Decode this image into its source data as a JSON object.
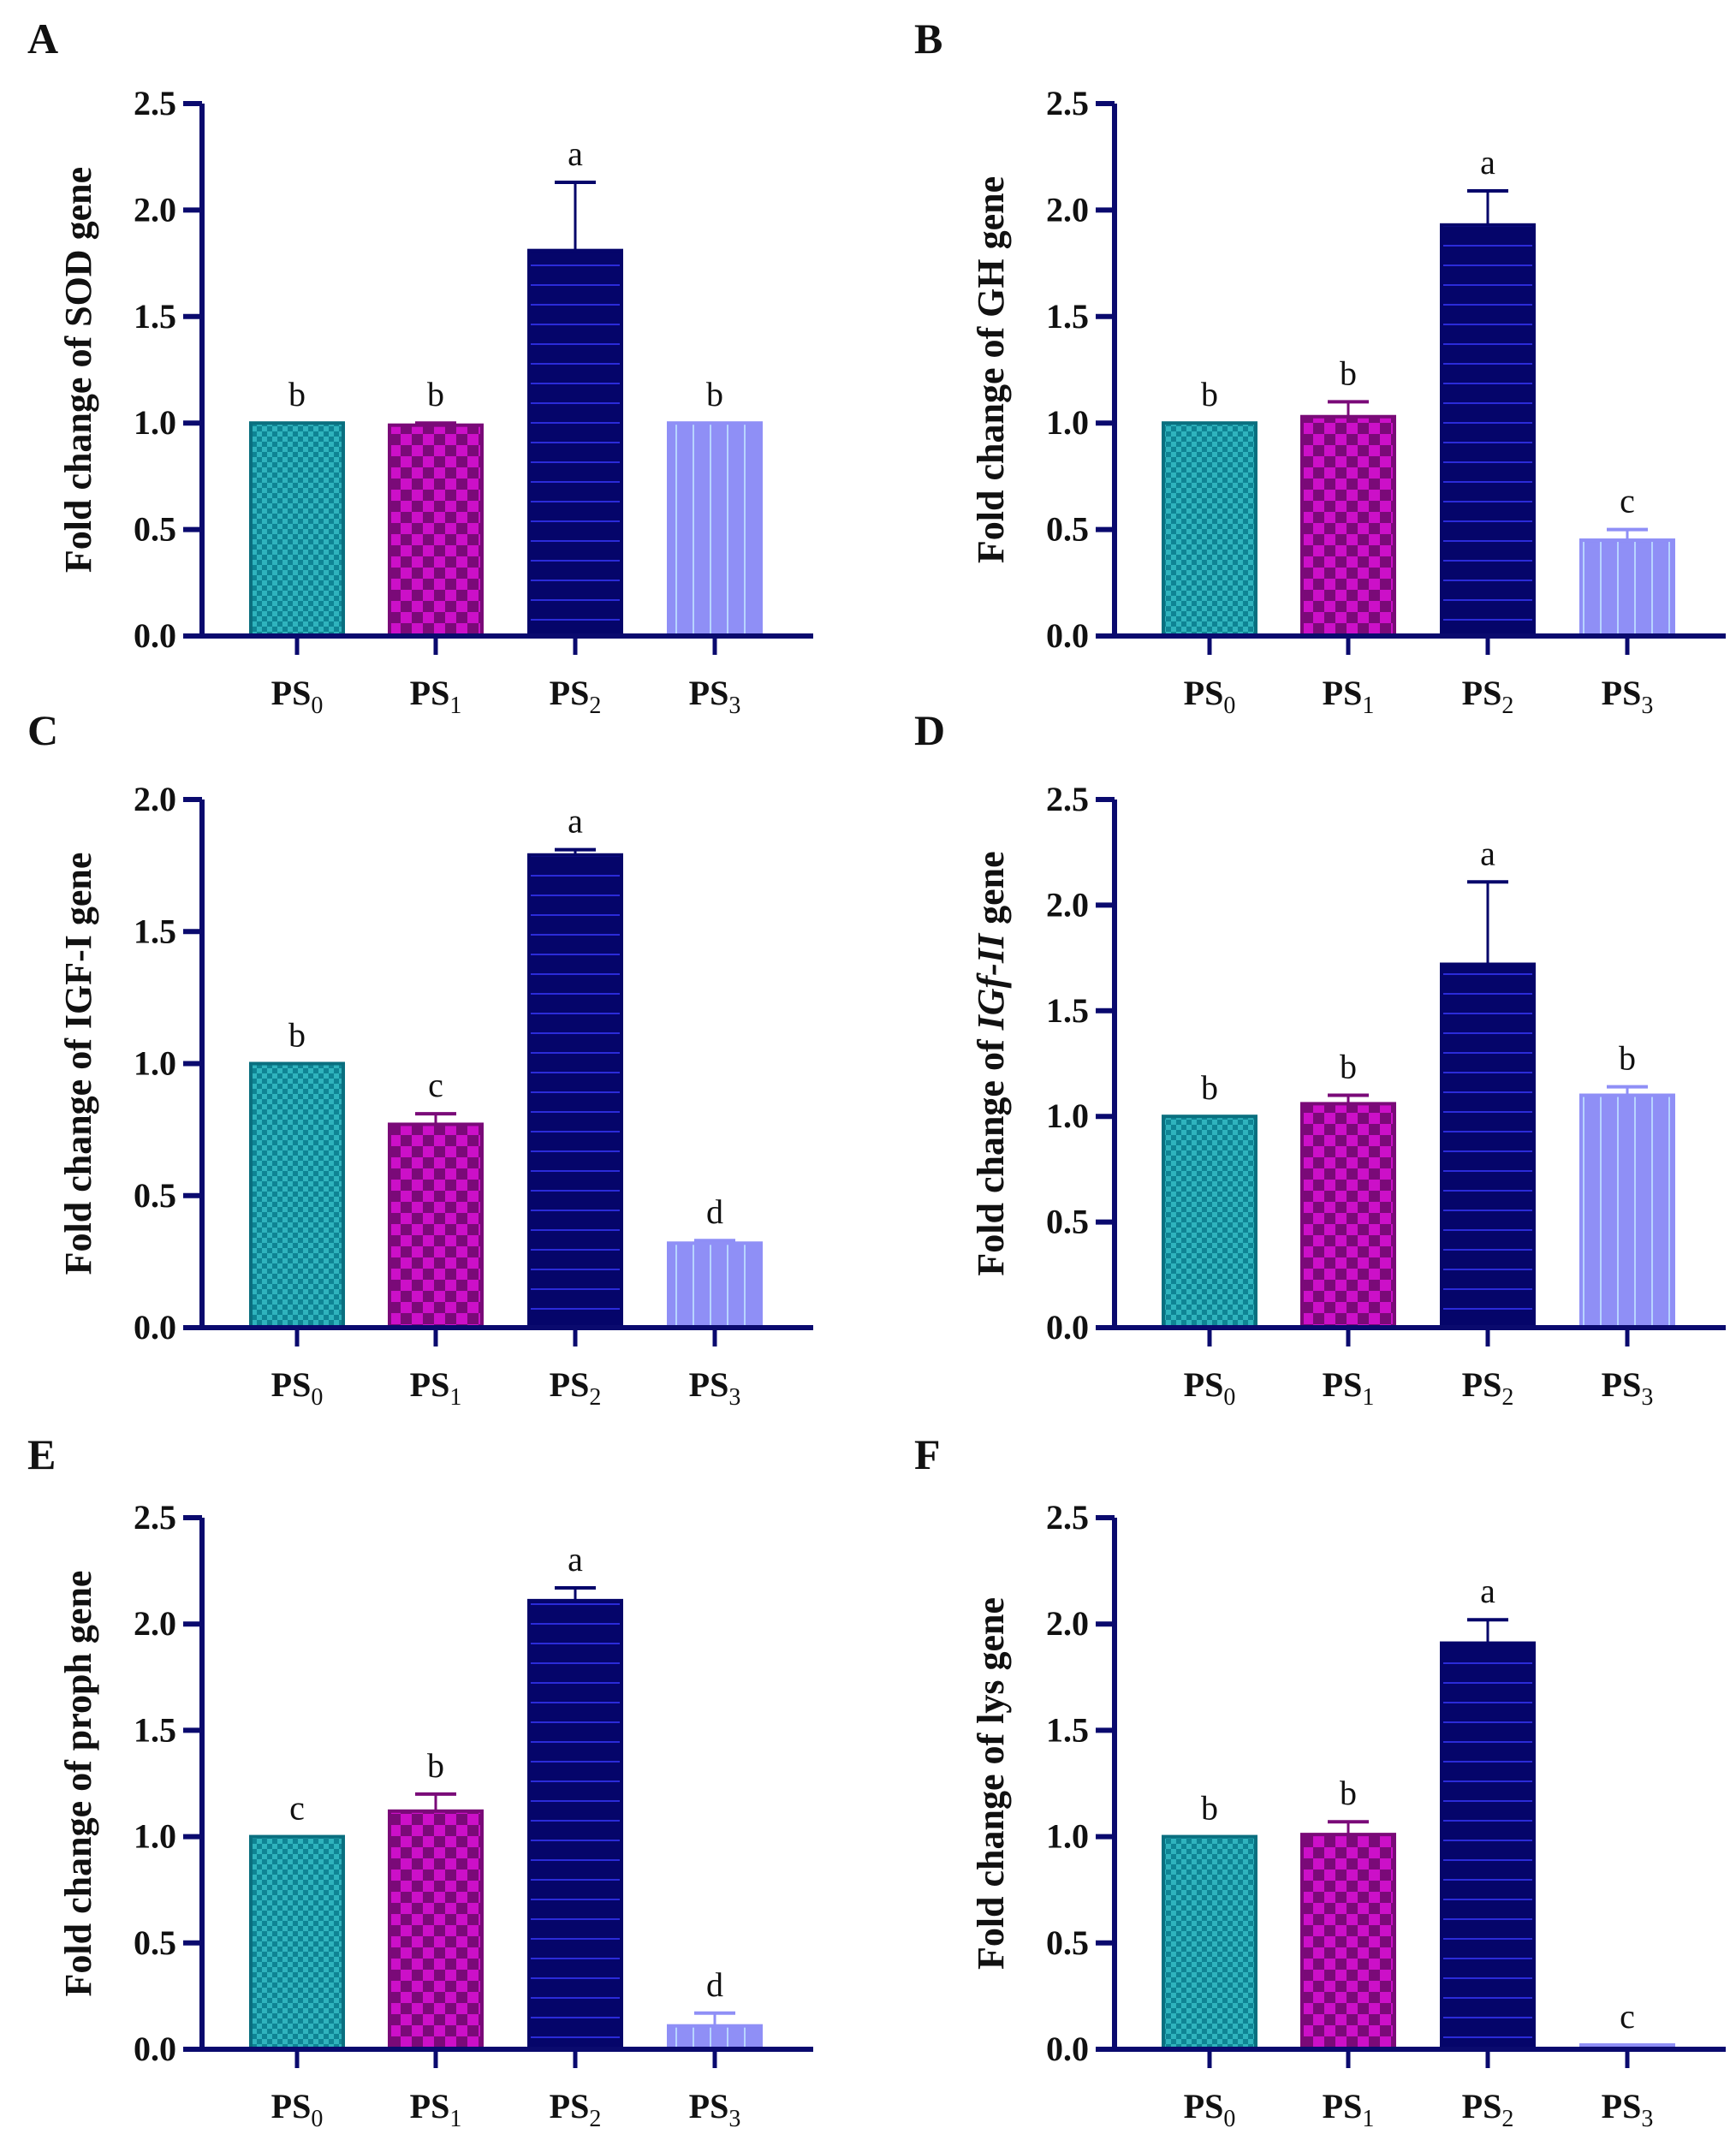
{
  "colors": {
    "axis": "#0a0a6e",
    "PS0": {
      "fill": "#0f8494",
      "alt": "#2fb3bd",
      "stroke": "#0a6f7f"
    },
    "PS1": {
      "fill": "#cc10c8",
      "alt": "#7a0a78",
      "stroke": "#7a0a78"
    },
    "PS2": {
      "fill": "#05056a",
      "alt": "#2b2bd8",
      "stroke": "#05056a"
    },
    "PS3": {
      "fill": "#8f8ff6",
      "alt": "#b8d4ff",
      "stroke": "#8f8ff6"
    }
  },
  "chart_data": [
    {
      "panel": "A",
      "type": "bar",
      "ylabel": "Fold change of SOD gene",
      "ylabel_italic": "",
      "categories": [
        {
          "base": "PS",
          "sub": "0"
        },
        {
          "base": "PS",
          "sub": "1"
        },
        {
          "base": "PS",
          "sub": "2"
        },
        {
          "base": "PS",
          "sub": "3"
        }
      ],
      "values": [
        1.0,
        0.99,
        1.81,
        1.0
      ],
      "errors": [
        0,
        0.01,
        0.32,
        0
      ],
      "letters": [
        "b",
        "b",
        "a",
        "b"
      ],
      "ylim": [
        0,
        2.5
      ],
      "yticks": [
        "0.0",
        "0.5",
        "1.0",
        "1.5",
        "2.0",
        "2.5"
      ],
      "tick_step": 0.5
    },
    {
      "panel": "B",
      "type": "bar",
      "ylabel": "Fold change of GH gene",
      "ylabel_italic": "",
      "categories": [
        {
          "base": "PS",
          "sub": "0"
        },
        {
          "base": "PS",
          "sub": "1"
        },
        {
          "base": "PS",
          "sub": "2"
        },
        {
          "base": "PS",
          "sub": "3"
        }
      ],
      "values": [
        1.0,
        1.03,
        1.93,
        0.45
      ],
      "errors": [
        0,
        0.07,
        0.16,
        0.05
      ],
      "letters": [
        "b",
        "b",
        "a",
        "c"
      ],
      "ylim": [
        0,
        2.5
      ],
      "yticks": [
        "0.0",
        "0.5",
        "1.0",
        "1.5",
        "2.0",
        "2.5"
      ],
      "tick_step": 0.5
    },
    {
      "panel": "C",
      "type": "bar",
      "ylabel": "Fold change of IGF-I gene",
      "ylabel_italic": "",
      "categories": [
        {
          "base": "PS",
          "sub": "0"
        },
        {
          "base": "PS",
          "sub": "1"
        },
        {
          "base": "PS",
          "sub": "2"
        },
        {
          "base": "PS",
          "sub": "3"
        }
      ],
      "values": [
        1.0,
        0.77,
        1.79,
        0.32
      ],
      "errors": [
        0,
        0.04,
        0.02,
        0.01
      ],
      "letters": [
        "b",
        "c",
        "a",
        "d"
      ],
      "ylim": [
        0,
        2.0
      ],
      "yticks": [
        "0.0",
        "0.5",
        "1.0",
        "1.5",
        "2.0"
      ],
      "tick_step": 0.5
    },
    {
      "panel": "D",
      "type": "bar",
      "ylabel": "Fold change of IGf-II gene",
      "ylabel_italic": "IGf-II",
      "categories": [
        {
          "base": "PS",
          "sub": "0"
        },
        {
          "base": "PS",
          "sub": "1"
        },
        {
          "base": "PS",
          "sub": "2"
        },
        {
          "base": "PS",
          "sub": "3"
        }
      ],
      "values": [
        1.0,
        1.06,
        1.72,
        1.1
      ],
      "errors": [
        0,
        0.04,
        0.39,
        0.04
      ],
      "letters": [
        "b",
        "b",
        "a",
        "b"
      ],
      "ylim": [
        0,
        2.5
      ],
      "yticks": [
        "0.0",
        "0.5",
        "1.0",
        "1.5",
        "2.0",
        "2.5"
      ],
      "tick_step": 0.5
    },
    {
      "panel": "E",
      "type": "bar",
      "ylabel": "Fold change of proph gene",
      "ylabel_italic": "",
      "categories": [
        {
          "base": "PS",
          "sub": "0"
        },
        {
          "base": "PS",
          "sub": "1"
        },
        {
          "base": "PS",
          "sub": "2"
        },
        {
          "base": "PS",
          "sub": "3"
        }
      ],
      "values": [
        1.0,
        1.12,
        2.11,
        0.11
      ],
      "errors": [
        0,
        0.08,
        0.06,
        0.06
      ],
      "letters": [
        "c",
        "b",
        "a",
        "d"
      ],
      "ylim": [
        0,
        2.5
      ],
      "yticks": [
        "0.0",
        "0.5",
        "1.0",
        "1.5",
        "2.0",
        "2.5"
      ],
      "tick_step": 0.5
    },
    {
      "panel": "F",
      "type": "bar",
      "ylabel": "Fold change of lys gene",
      "ylabel_italic": "",
      "categories": [
        {
          "base": "PS",
          "sub": "0"
        },
        {
          "base": "PS",
          "sub": "1"
        },
        {
          "base": "PS",
          "sub": "2"
        },
        {
          "base": "PS",
          "sub": "3"
        }
      ],
      "values": [
        1.0,
        1.01,
        1.91,
        0.02
      ],
      "errors": [
        0,
        0.06,
        0.11,
        0
      ],
      "letters": [
        "b",
        "b",
        "a",
        "c"
      ],
      "ylim": [
        0,
        2.5
      ],
      "yticks": [
        "0.0",
        "0.5",
        "1.0",
        "1.5",
        "2.0",
        "2.5"
      ],
      "tick_step": 0.5
    }
  ]
}
